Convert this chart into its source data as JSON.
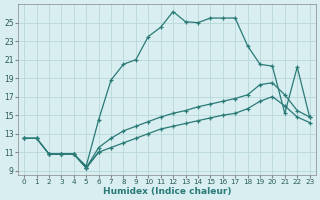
{
  "xlabel": "Humidex (Indice chaleur)",
  "bg_color": "#d8eef0",
  "grid_color": "#b8d8da",
  "line_color": "#2a7a78",
  "xlim": [
    -0.5,
    23.5
  ],
  "ylim": [
    8.5,
    27.0
  ],
  "xticks": [
    0,
    1,
    2,
    3,
    4,
    5,
    6,
    7,
    8,
    9,
    10,
    11,
    12,
    13,
    14,
    15,
    16,
    17,
    18,
    19,
    20,
    21,
    22,
    23
  ],
  "yticks": [
    9,
    11,
    13,
    15,
    17,
    19,
    21,
    23,
    25
  ],
  "line1_x": [
    0,
    1,
    2,
    3,
    4,
    5,
    6,
    7,
    8,
    9,
    10,
    11,
    12,
    13,
    14,
    15,
    16,
    17,
    18,
    19,
    20,
    21,
    22,
    23
  ],
  "line1_y": [
    12.5,
    12.5,
    10.8,
    10.8,
    10.8,
    9.5,
    14.5,
    18.8,
    20.5,
    21.0,
    23.5,
    24.5,
    26.2,
    25.1,
    25.0,
    25.5,
    25.5,
    25.5,
    22.5,
    20.5,
    20.3,
    15.2,
    20.2,
    14.8
  ],
  "line2_x": [
    0,
    1,
    2,
    3,
    4,
    5,
    6,
    7,
    8,
    9,
    10,
    11,
    12,
    13,
    14,
    15,
    16,
    17,
    18,
    19,
    20,
    21,
    22,
    23
  ],
  "line2_y": [
    12.5,
    12.5,
    10.8,
    10.8,
    10.8,
    9.3,
    11.5,
    12.5,
    13.3,
    13.8,
    14.3,
    14.8,
    15.2,
    15.5,
    15.9,
    16.2,
    16.5,
    16.8,
    17.2,
    18.3,
    18.5,
    17.2,
    15.5,
    14.8
  ],
  "line3_x": [
    0,
    1,
    2,
    3,
    4,
    5,
    6,
    7,
    8,
    9,
    10,
    11,
    12,
    13,
    14,
    15,
    16,
    17,
    18,
    19,
    20,
    21,
    22,
    23
  ],
  "line3_y": [
    12.5,
    12.5,
    10.8,
    10.8,
    10.8,
    9.3,
    11.0,
    11.5,
    12.0,
    12.5,
    13.0,
    13.5,
    13.8,
    14.1,
    14.4,
    14.7,
    15.0,
    15.2,
    15.7,
    16.5,
    17.0,
    16.0,
    14.8,
    14.2
  ],
  "line4_x": [
    2,
    3,
    4,
    5,
    6
  ],
  "line4_y": [
    10.8,
    10.8,
    10.8,
    9.3,
    11.0
  ]
}
